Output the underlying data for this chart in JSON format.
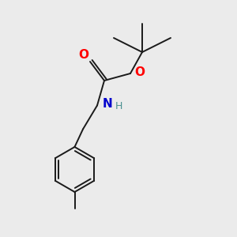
{
  "background_color": "#ebebeb",
  "bond_color": "#1a1a1a",
  "atom_colors": {
    "O": "#ff0000",
    "N": "#0000cc",
    "H_on_N": "#4a9090"
  },
  "bond_lw": 1.4,
  "font_size_N": 11,
  "font_size_H": 9,
  "font_size_O": 11
}
